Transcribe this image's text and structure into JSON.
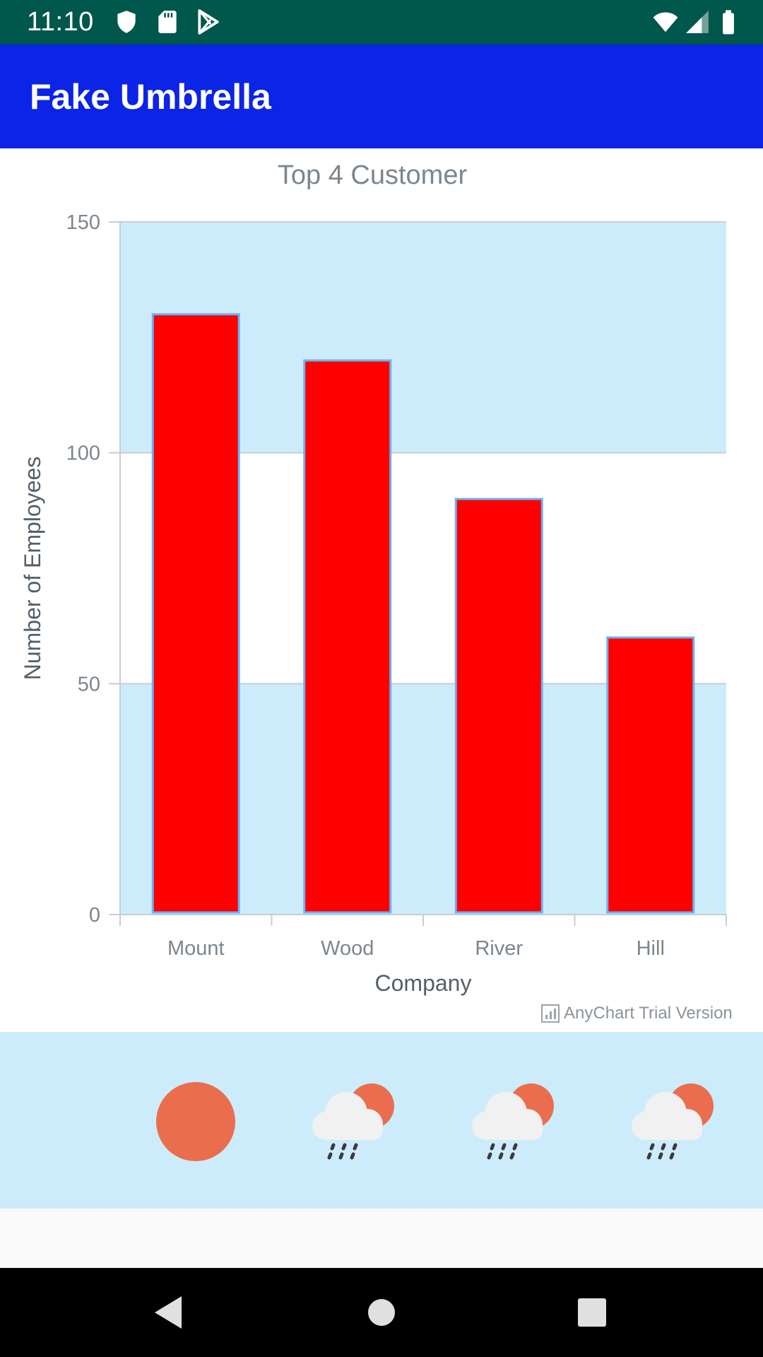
{
  "status_bar": {
    "time": "11:10",
    "icons": [
      "shield-icon",
      "sd-card-icon",
      "play-store-icon",
      "wifi-icon",
      "signal-icon",
      "battery-icon"
    ]
  },
  "app_bar": {
    "title": "Fake Umbrella",
    "color": "#0b24e6"
  },
  "chart_data": {
    "type": "bar",
    "title": "Top 4 Customer",
    "xlabel": "Company",
    "ylabel": "Number of Employees",
    "categories": [
      "Mount",
      "Wood",
      "River",
      "Hill"
    ],
    "values": [
      130,
      120,
      90,
      60
    ],
    "ylim": [
      0,
      150
    ],
    "yticks": [
      0,
      50,
      100,
      150
    ],
    "bar_color": "#ff0000",
    "bar_stroke": "#64b5f6",
    "band_color": "#cdecfb",
    "grid": true,
    "credit": "AnyChart Trial Version"
  },
  "weather": {
    "icons": [
      "sun-icon",
      "cloud-rain-sun-icon",
      "cloud-rain-sun-icon",
      "cloud-rain-sun-icon"
    ]
  },
  "nav_bar": {
    "buttons": [
      "back-icon",
      "home-icon",
      "recents-icon"
    ]
  }
}
